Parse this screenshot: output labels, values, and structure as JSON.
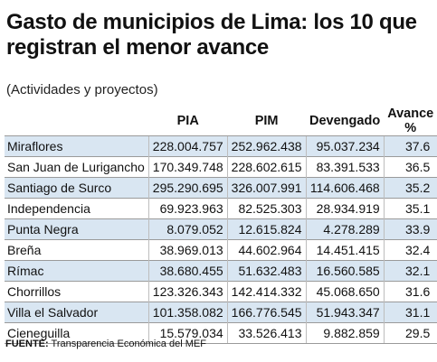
{
  "header": {
    "title": "Gasto de municipios de Lima: los 10 que registran el menor avance",
    "subtitle": "(Actividades y proyectos)"
  },
  "table": {
    "columns": [
      "",
      "PIA",
      "PIM",
      "Devengado",
      "Avance %"
    ],
    "rows": [
      {
        "name": "Miraflores",
        "pia": "228.004.757",
        "pim": "252.962.438",
        "devengado": "95.037.234",
        "avance": "37.6"
      },
      {
        "name": "San Juan de Lurigancho",
        "pia": "170.349.748",
        "pim": "228.602.615",
        "devengado": "83.391.533",
        "avance": "36.5"
      },
      {
        "name": "Santiago de Surco",
        "pia": "295.290.695",
        "pim": "326.007.991",
        "devengado": "114.606.468",
        "avance": "35.2"
      },
      {
        "name": "Independencia",
        "pia": "69.923.963",
        "pim": "82.525.303",
        "devengado": "28.934.919",
        "avance": "35.1"
      },
      {
        "name": "Punta Negra",
        "pia": "8.079.052",
        "pim": "12.615.824",
        "devengado": "4.278.289",
        "avance": "33.9"
      },
      {
        "name": "Breña",
        "pia": "38.969.013",
        "pim": "44.602.964",
        "devengado": "14.451.415",
        "avance": "32.4"
      },
      {
        "name": "Rímac",
        "pia": "38.680.455",
        "pim": "51.632.483",
        "devengado": "16.560.585",
        "avance": "32.1"
      },
      {
        "name": "Chorrillos",
        "pia": "123.326.343",
        "pim": "142.414.332",
        "devengado": "45.068.650",
        "avance": "31.6"
      },
      {
        "name": "Villa el Salvador",
        "pia": "101.358.082",
        "pim": "166.776.545",
        "devengado": "51.943.347",
        "avance": "31.1"
      },
      {
        "name": "Cieneguilla",
        "pia": "15.579.034",
        "pim": "33.526.413",
        "devengado": "9.882.859",
        "avance": "29.5"
      }
    ]
  },
  "footer": {
    "label": "FUENTE:",
    "source": "Transparencia Económica del MEF"
  },
  "colors": {
    "row_shade": "#d9e6f2",
    "rule": "#9a9a9a"
  }
}
